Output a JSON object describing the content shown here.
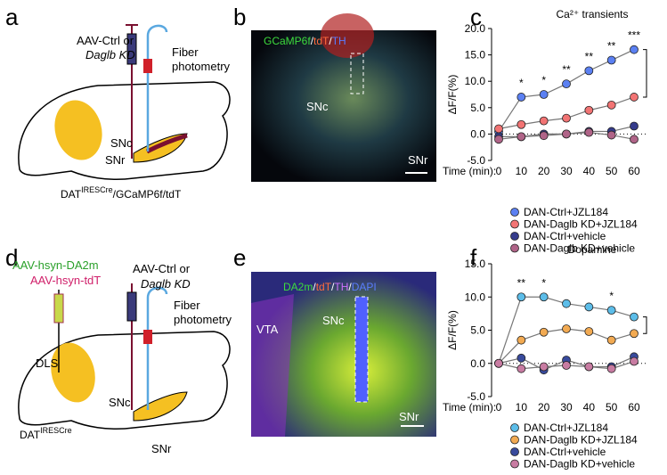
{
  "panels": {
    "a": {
      "letter": "a",
      "vector_line1": "AAV-Ctrl or",
      "vector_line2": "Daglb KD",
      "fiber_line1": "Fiber",
      "fiber_line2": "photometry",
      "snc": "SNc",
      "snr": "SNr",
      "mouse": {
        "base": "DAT",
        "sup": "IRESCre",
        "rest": "/GCaMP6f/tdT"
      }
    },
    "b": {
      "letter": "b",
      "title_parts": [
        {
          "text": "GCaMP6f",
          "color": "#3ddc3d"
        },
        {
          "text": "/",
          "color": "#ffffff"
        },
        {
          "text": "tdT",
          "color": "#ff6a3d"
        },
        {
          "text": "/",
          "color": "#ffffff"
        },
        {
          "text": "TH",
          "color": "#5a7cff"
        }
      ],
      "snc": "SNc",
      "snr": "SNr"
    },
    "c": {
      "letter": "c"
    },
    "d": {
      "letter": "d",
      "sensor1": "AAV-hsyn-DA2m",
      "sensor2": "AAV-hsyn-tdT",
      "vector_line1": "AAV-Ctrl or",
      "vector_line2": "Daglb KD",
      "fiber_line1": "Fiber",
      "fiber_line2": "photometry",
      "dls": "DLS",
      "snc": "SNc",
      "snr": "SNr",
      "mouse": {
        "base": "DAT",
        "sup": "IRESCre"
      }
    },
    "e": {
      "letter": "e",
      "title_parts": [
        {
          "text": "DA2m",
          "color": "#3ddc3d"
        },
        {
          "text": "/",
          "color": "#ffffff"
        },
        {
          "text": "tdT",
          "color": "#ff6a3d"
        },
        {
          "text": "/",
          "color": "#ffffff"
        },
        {
          "text": "TH",
          "color": "#d070ff"
        },
        {
          "text": "/",
          "color": "#ffffff"
        },
        {
          "text": "DAPI",
          "color": "#5a7cff"
        }
      ],
      "vta": "VTA",
      "snc": "SNc",
      "snr": "SNr"
    },
    "f": {
      "letter": "f"
    }
  },
  "chart_data": [
    {
      "type": "line",
      "title": "Ca²⁺ transients",
      "y_label": "ΔF/F(%)",
      "x_label": "Time (min):",
      "x": [
        0,
        10,
        20,
        30,
        40,
        50,
        60
      ],
      "xlim": [
        0,
        60
      ],
      "xticks": [
        0,
        10,
        20,
        30,
        40,
        50,
        60
      ],
      "ylim": [
        -5,
        20
      ],
      "yticks": [
        {
          "value": 20,
          "label": "20.0"
        },
        {
          "value": 15,
          "label": "15.0"
        },
        {
          "value": 10,
          "label": "10.0"
        },
        {
          "value": 5,
          "label": "5.0"
        },
        {
          "value": 0,
          "label": "0.0"
        },
        {
          "value": -5,
          "label": "-5.0"
        }
      ],
      "series": [
        {
          "name": "DAN-Ctrl+JZL184",
          "color": "#5b80f2",
          "values": [
            0.5,
            7,
            7.5,
            9.5,
            12,
            14,
            16
          ]
        },
        {
          "name": "DAN-Daglb KD+JZL184",
          "color": "#f27474",
          "values": [
            1,
            1.8,
            2.5,
            3,
            4.5,
            5.5,
            7
          ]
        },
        {
          "name": "DAN-Ctrl+vehicle",
          "color": "#353c8c",
          "values": [
            -0.5,
            -0.5,
            0,
            0,
            0.5,
            0.5,
            1.5
          ]
        },
        {
          "name": "DAN-Daglb KD+vehicle",
          "color": "#b06488",
          "values": [
            -1,
            -0.5,
            -0.3,
            0,
            0.3,
            -0.2,
            -1
          ]
        }
      ],
      "annotations": [
        {
          "x": 10,
          "text": "*"
        },
        {
          "x": 20,
          "text": "*"
        },
        {
          "x": 30,
          "text": "**"
        },
        {
          "x": 40,
          "text": "**"
        },
        {
          "x": 50,
          "text": "**"
        },
        {
          "x": 60,
          "text": "***"
        }
      ]
    },
    {
      "type": "line",
      "title": "Dopamine",
      "y_label": "ΔF/F(%)",
      "x_label": "Time (min):",
      "x": [
        0,
        10,
        20,
        30,
        40,
        50,
        60
      ],
      "xlim": [
        0,
        60
      ],
      "xticks": [
        0,
        10,
        20,
        30,
        40,
        50,
        60
      ],
      "ylim": [
        -5,
        15
      ],
      "yticks": [
        {
          "value": 15,
          "label": "15.0"
        },
        {
          "value": 10,
          "label": "10.0"
        },
        {
          "value": 5,
          "label": "5.0"
        },
        {
          "value": 0,
          "label": "0.0"
        },
        {
          "value": -5,
          "label": "-5.0"
        }
      ],
      "series": [
        {
          "name": "DAN-Ctrl+JZL184",
          "color": "#5cbde9",
          "values": [
            0,
            10,
            10,
            9,
            8.5,
            8,
            7
          ]
        },
        {
          "name": "DAN-Daglb KD+JZL184",
          "color": "#f2aa52",
          "values": [
            0,
            3.5,
            4.7,
            5.2,
            4.8,
            3.5,
            4.5
          ]
        },
        {
          "name": "DAN-Ctrl+vehicle",
          "color": "#384a9c",
          "values": [
            0,
            0.8,
            -1,
            0.5,
            -0.5,
            -0.5,
            1
          ]
        },
        {
          "name": "DAN-Daglb KD+vehicle",
          "color": "#c87ca2",
          "values": [
            0,
            -0.8,
            -0.5,
            -0.3,
            -0.5,
            -0.8,
            0.3
          ]
        }
      ],
      "annotations": [
        {
          "x": 10,
          "text": "**"
        },
        {
          "x": 20,
          "text": "*"
        },
        {
          "x": 50,
          "text": "*"
        }
      ]
    }
  ]
}
